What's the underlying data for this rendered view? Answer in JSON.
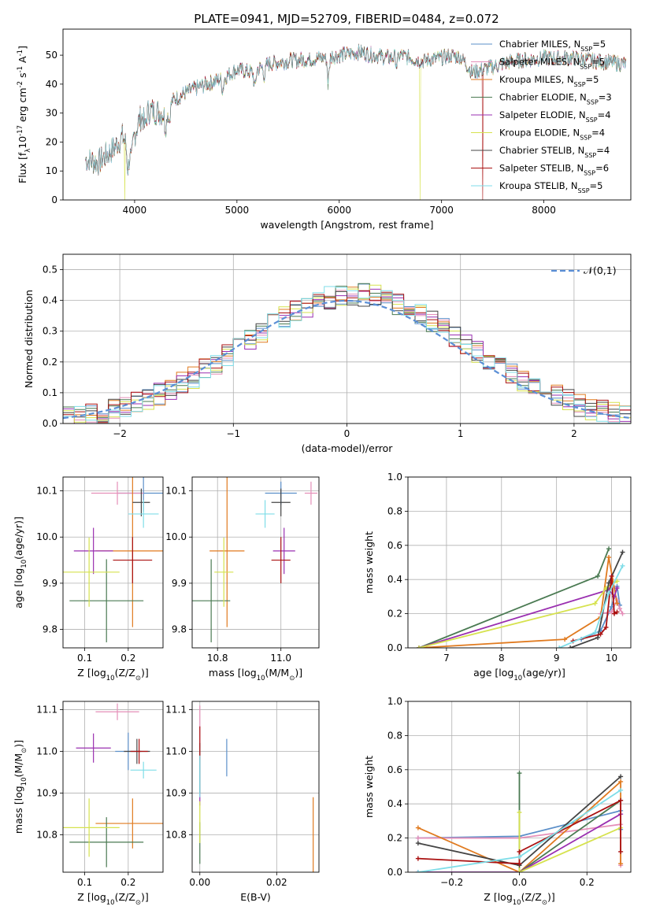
{
  "title": "PLATE=0941, MJD=52709, FIBERID=0484, z=0.072",
  "series": [
    {
      "name": "Chabrier MILES, N$_{SSP}$=5",
      "label_base": "Chabrier MILES, N",
      "label_n": "5",
      "color": "#5b8fc9"
    },
    {
      "name": "Salpeter MILES, N$_{SSP}$=5",
      "label_base": "Salpeter MILES, N",
      "label_n": "5",
      "color": "#e58fb9"
    },
    {
      "name": "Kroupa MILES, N$_{SSP}$=5",
      "label_base": "Kroupa MILES, N",
      "label_n": "5",
      "color": "#e07a1f"
    },
    {
      "name": "Chabrier ELODIE, N$_{SSP}$=3",
      "label_base": "Chabrier ELODIE, N",
      "label_n": "3",
      "color": "#4a7a52"
    },
    {
      "name": "Salpeter ELODIE, N$_{SSP}$=4",
      "label_base": "Salpeter ELODIE, N",
      "label_n": "4",
      "color": "#9a2fb0"
    },
    {
      "name": "Kroupa ELODIE, N$_{SSP}$=4",
      "label_base": "Kroupa ELODIE, N",
      "label_n": "4",
      "color": "#d6e24e"
    },
    {
      "name": "Chabrier STELIB, N$_{SSP}$=4",
      "label_base": "Chabrier STELIB, N",
      "label_n": "4",
      "color": "#444444"
    },
    {
      "name": "Salpeter STELIB, N$_{SSP}$=6",
      "label_base": "Salpeter STELIB, N",
      "label_n": "6",
      "color": "#aa1111"
    },
    {
      "name": "Kroupa STELIB, N$_{SSP}$=5",
      "label_base": "Kroupa STELIB, N",
      "label_n": "5",
      "color": "#7fdde8"
    }
  ],
  "chart_data": [
    {
      "id": "spectrum",
      "type": "line",
      "xlabel": "wavelength [Angstrom, rest frame]",
      "ylabel": "Flux [f$_\\lambda$10$^{-17}$ erg cm$^{-2}$ s$^{-1}$ A$^{-1}$]",
      "xlim": [
        3300,
        8850
      ],
      "ylim": [
        0,
        59
      ],
      "xticks": [
        4000,
        5000,
        6000,
        7000,
        8000
      ],
      "yticks": [
        0,
        10,
        20,
        30,
        40,
        50
      ],
      "legend": "upper right",
      "continuum": [
        [
          3520,
          14
        ],
        [
          3650,
          13
        ],
        [
          3800,
          18
        ],
        [
          3880,
          22
        ],
        [
          3950,
          17
        ],
        [
          4050,
          28
        ],
        [
          4150,
          31
        ],
        [
          4300,
          30
        ],
        [
          4350,
          34
        ],
        [
          4500,
          37
        ],
        [
          4700,
          40
        ],
        [
          4860,
          42
        ],
        [
          5000,
          45
        ],
        [
          5150,
          44
        ],
        [
          5300,
          47
        ],
        [
          5500,
          48
        ],
        [
          5800,
          49
        ],
        [
          6000,
          50
        ],
        [
          6200,
          51
        ],
        [
          6500,
          49
        ],
        [
          6600,
          50
        ],
        [
          6800,
          48
        ],
        [
          7000,
          49
        ],
        [
          7100,
          50
        ],
        [
          7200,
          49
        ],
        [
          7300,
          44
        ],
        [
          7500,
          46
        ],
        [
          7700,
          48
        ],
        [
          8000,
          49
        ],
        [
          8300,
          49
        ],
        [
          8500,
          48
        ],
        [
          8800,
          47
        ]
      ],
      "absorption": [
        [
          3934,
          -7
        ],
        [
          3969,
          -6
        ],
        [
          4102,
          -5
        ],
        [
          4304,
          -6
        ],
        [
          4340,
          -6
        ],
        [
          4861,
          -4
        ],
        [
          5175,
          -6
        ],
        [
          5270,
          -4
        ],
        [
          5893,
          -8
        ],
        [
          6563,
          -3
        ]
      ]
    },
    {
      "id": "residuals",
      "type": "line",
      "xlabel": "(data-model)/error",
      "ylabel": "Normed distribution",
      "xlim": [
        -2.5,
        2.5
      ],
      "ylim": [
        0,
        0.55
      ],
      "xticks": [
        -2,
        -1,
        0,
        1,
        2
      ],
      "yticks": [
        0.0,
        0.1,
        0.2,
        0.3,
        0.4,
        0.5
      ],
      "grid": true,
      "legend": "upper right",
      "legend_label": "$\\mathcal{N}(0,1)$",
      "hist_bins": [
        -2.5,
        2.5,
        0.1
      ]
    },
    {
      "id": "z_age",
      "type": "scatter",
      "xlabel": "Z [log$_{10}$(Z/Z$_\\odot$)]",
      "ylabel": "age  [log$_{10}$(age/yr)]",
      "xlim": [
        0.05,
        0.28
      ],
      "ylim": [
        9.76,
        10.13
      ],
      "xticks": [
        0.1,
        0.2
      ],
      "yticks": [
        9.8,
        9.9,
        10.0,
        10.1
      ],
      "grid": true,
      "points": [
        {
          "x": 0.235,
          "y": 10.095,
          "xerr": 0.06,
          "yerr": 0.04
        },
        {
          "x": 0.175,
          "y": 10.095,
          "xerr": 0.06,
          "yerr": 0.025
        },
        {
          "x": 0.21,
          "y": 9.97,
          "xerr": 0.085,
          "yerr": 0.165
        },
        {
          "x": 0.15,
          "y": 9.862,
          "xerr": 0.085,
          "yerr": 0.09
        },
        {
          "x": 0.12,
          "y": 9.97,
          "xerr": 0.045,
          "yerr": 0.05
        },
        {
          "x": 0.11,
          "y": 9.924,
          "xerr": 0.07,
          "yerr": 0.075
        },
        {
          "x": 0.23,
          "y": 10.075,
          "xerr": 0.02,
          "yerr": 0.03
        },
        {
          "x": 0.21,
          "y": 9.95,
          "xerr": 0.045,
          "yerr": 0.05
        },
        {
          "x": 0.235,
          "y": 10.05,
          "xerr": 0.035,
          "yerr": 0.03
        }
      ]
    },
    {
      "id": "mass_age",
      "type": "scatter",
      "xlabel": "mass [log$_{10}$(M/M$_\\odot$)]",
      "ylabel": "",
      "xlim": [
        10.72,
        11.12
      ],
      "ylim": [
        9.76,
        10.13
      ],
      "xticks": [
        10.8,
        11.0
      ],
      "yticks": [
        9.8,
        9.9,
        10.0,
        10.1
      ],
      "grid": true,
      "points": [
        {
          "x": 11.0,
          "y": 10.095,
          "xerr": 0.05,
          "yerr": 0.025
        },
        {
          "x": 11.095,
          "y": 10.095,
          "xerr": 0.02,
          "yerr": 0.025
        },
        {
          "x": 10.83,
          "y": 9.97,
          "xerr": 0.055,
          "yerr": 0.165
        },
        {
          "x": 10.78,
          "y": 9.862,
          "xerr": 0.06,
          "yerr": 0.09
        },
        {
          "x": 11.01,
          "y": 9.97,
          "xerr": 0.035,
          "yerr": 0.05
        },
        {
          "x": 10.82,
          "y": 9.924,
          "xerr": 0.03,
          "yerr": 0.075
        },
        {
          "x": 11.0,
          "y": 10.075,
          "xerr": 0.03,
          "yerr": 0.03
        },
        {
          "x": 11.0,
          "y": 9.95,
          "xerr": 0.03,
          "yerr": 0.05
        },
        {
          "x": 10.95,
          "y": 10.05,
          "xerr": 0.03,
          "yerr": 0.03
        }
      ]
    },
    {
      "id": "age_massweight",
      "type": "line",
      "xlabel": "age  [log$_{10}$(age/yr)]",
      "ylabel": "mass weight",
      "xlim": [
        6.3,
        10.35
      ],
      "ylim": [
        0,
        1.0
      ],
      "xticks": [
        7,
        8,
        9,
        10
      ],
      "yticks": [
        0.0,
        0.2,
        0.4,
        0.6,
        0.8,
        1.0
      ],
      "grid": true,
      "series": [
        {
          "x": [
            9.45,
            9.8,
            10.0,
            10.1,
            10.15
          ],
          "y": [
            0.05,
            0.1,
            0.24,
            0.36,
            0.25
          ]
        },
        {
          "x": [
            9.8,
            10.0,
            10.1,
            10.15,
            10.2
          ],
          "y": [
            0.2,
            0.21,
            0.28,
            0.23,
            0.2
          ]
        },
        {
          "x": [
            6.5,
            9.15,
            9.8,
            9.95,
            10.1
          ],
          "y": [
            0.0,
            0.05,
            0.18,
            0.53,
            0.26
          ]
        },
        {
          "x": [
            6.5,
            9.75,
            9.95
          ],
          "y": [
            0.0,
            0.42,
            0.58
          ]
        },
        {
          "x": [
            6.5,
            9.95,
            10.05,
            10.1
          ],
          "y": [
            0.0,
            0.34,
            0.3,
            0.35
          ]
        },
        {
          "x": [
            6.5,
            9.7,
            9.9,
            10.1
          ],
          "y": [
            0.0,
            0.26,
            0.35,
            0.39
          ]
        },
        {
          "x": [
            9.25,
            9.75,
            9.95,
            10.2
          ],
          "y": [
            0.0,
            0.06,
            0.38,
            0.56
          ]
        },
        {
          "x": [
            9.3,
            9.8,
            9.9,
            10.0,
            10.05,
            10.1
          ],
          "y": [
            0.04,
            0.08,
            0.12,
            0.42,
            0.2,
            0.21
          ]
        },
        {
          "x": [
            9.05,
            9.7,
            9.95,
            10.2
          ],
          "y": [
            0.0,
            0.09,
            0.32,
            0.48
          ]
        }
      ]
    },
    {
      "id": "z_mass",
      "type": "scatter",
      "xlabel": "Z [log$_{10}$(Z/Z$_\\odot$)]",
      "ylabel": "mass [log$_{10}$(M/M$_\\odot$)]",
      "xlim": [
        0.05,
        0.28
      ],
      "ylim": [
        10.71,
        11.12
      ],
      "xticks": [
        0.1,
        0.2
      ],
      "yticks": [
        10.8,
        10.9,
        11.0,
        11.1
      ],
      "grid": true,
      "points": [
        {
          "x": 0.2,
          "y": 11.0,
          "xerr": 0.03,
          "yerr": 0.045
        },
        {
          "x": 0.175,
          "y": 11.095,
          "xerr": 0.05,
          "yerr": 0.02
        },
        {
          "x": 0.21,
          "y": 10.827,
          "xerr": 0.085,
          "yerr": 0.06
        },
        {
          "x": 0.15,
          "y": 10.782,
          "xerr": 0.085,
          "yerr": 0.06
        },
        {
          "x": 0.12,
          "y": 11.008,
          "xerr": 0.04,
          "yerr": 0.035
        },
        {
          "x": 0.11,
          "y": 10.817,
          "xerr": 0.07,
          "yerr": 0.07
        },
        {
          "x": 0.22,
          "y": 11.0,
          "xerr": 0.03,
          "yerr": 0.03
        },
        {
          "x": 0.225,
          "y": 11.0,
          "xerr": 0.02,
          "yerr": 0.03
        },
        {
          "x": 0.235,
          "y": 10.955,
          "xerr": 0.03,
          "yerr": 0.02
        }
      ]
    },
    {
      "id": "ebv_mass",
      "type": "scatter",
      "xlabel": "E(B-V)",
      "ylabel": "",
      "xlim": [
        -0.002,
        0.031
      ],
      "ylim": [
        10.71,
        11.12
      ],
      "xticks": [
        0.0,
        0.02
      ],
      "yticks": [
        10.8,
        10.9,
        11.0,
        11.1
      ],
      "grid": true,
      "points": [
        {
          "x": 0.007,
          "y": 10.985,
          "xerr": 0,
          "yerr": 0.045
        },
        {
          "x": 0.0,
          "y": 11.06,
          "xerr": 0,
          "yerr": 0.05
        },
        {
          "x": 0.0295,
          "y": 10.8,
          "xerr": 0,
          "yerr": 0.09
        },
        {
          "x": 0.0,
          "y": 10.78,
          "xerr": 0,
          "yerr": 0.05
        },
        {
          "x": 0.0,
          "y": 10.93,
          "xerr": 0,
          "yerr": 0.06
        },
        {
          "x": 0.0,
          "y": 10.83,
          "xerr": 0,
          "yerr": 0.05
        },
        {
          "x": 0.0,
          "y": 10.96,
          "xerr": 0,
          "yerr": 0.06
        },
        {
          "x": 0.0,
          "y": 11.02,
          "xerr": 0,
          "yerr": 0.04
        },
        {
          "x": 0.0,
          "y": 10.94,
          "xerr": 0,
          "yerr": 0.05
        }
      ]
    },
    {
      "id": "z_massweight",
      "type": "line",
      "xlabel": "Z [log$_{10}$(Z/Z$_\\odot$)]",
      "ylabel": "mass weight",
      "xlim": [
        -0.33,
        0.33
      ],
      "ylim": [
        0,
        1.0
      ],
      "xticks": [
        -0.2,
        0.0,
        0.2
      ],
      "yticks": [
        0.0,
        0.2,
        0.4,
        0.6,
        0.8,
        1.0
      ],
      "grid": true,
      "series": [
        {
          "x": [
            -0.3,
            0.0,
            0.3,
            0.3
          ],
          "y": [
            0.2,
            0.21,
            0.36,
            0.25
          ]
        },
        {
          "x": [
            -0.3,
            0.0,
            0.3,
            0.3
          ],
          "y": [
            0.2,
            0.2,
            0.28,
            0.04
          ]
        },
        {
          "x": [
            -0.3,
            0.0,
            0.3,
            0.3
          ],
          "y": [
            0.26,
            0.0,
            0.53,
            0.05
          ]
        },
        {
          "x": [
            0.0,
            0.0,
            0.3
          ],
          "y": [
            0.58,
            0.0,
            0.42
          ]
        },
        {
          "x": [
            -0.3,
            0.0,
            0.3
          ],
          "y": [
            0.0,
            0.0,
            0.34
          ]
        },
        {
          "x": [
            0.0,
            0.0,
            0.3
          ],
          "y": [
            0.35,
            0.0,
            0.26
          ]
        },
        {
          "x": [
            -0.3,
            0.0,
            0.3
          ],
          "y": [
            0.17,
            0.04,
            0.56
          ]
        },
        {
          "x": [
            -0.3,
            0.0,
            0.0,
            0.3,
            0.3
          ],
          "y": [
            0.08,
            0.05,
            0.12,
            0.42,
            0.12
          ]
        },
        {
          "x": [
            -0.3,
            0.0,
            0.3
          ],
          "y": [
            0.0,
            0.09,
            0.48
          ]
        }
      ]
    }
  ]
}
